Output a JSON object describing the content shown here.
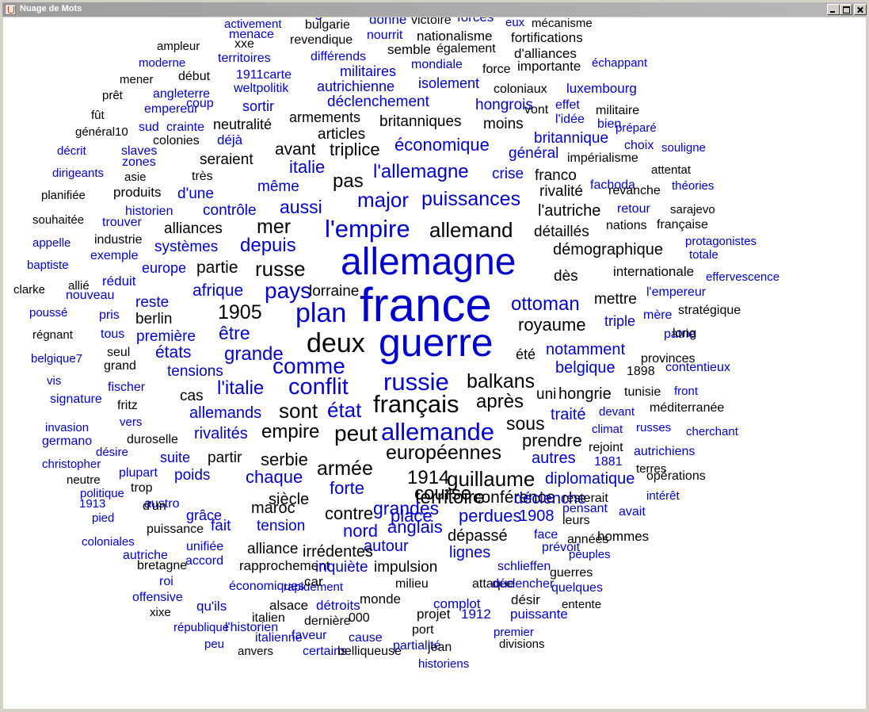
{
  "window": {
    "title": "Nuage de Mots"
  },
  "colors": {
    "black": "#000000",
    "blue": "#0000cc"
  },
  "words": [
    {
      "t": "l'angleterre",
      "c": "b"
    },
    {
      "t": "donné",
      "c": "b"
    },
    {
      "t": "victoire",
      "c": "k"
    },
    {
      "t": "forces",
      "c": "b"
    },
    {
      "t": "eux",
      "c": "b"
    },
    {
      "t": "mécanisme",
      "c": "k"
    },
    {
      "t": "activement",
      "c": "b"
    },
    {
      "t": "bulgarie",
      "c": "k"
    },
    {
      "t": "nourrit",
      "c": "b"
    },
    {
      "t": "nationalisme",
      "c": "k"
    },
    {
      "t": "fortifications",
      "c": "k"
    },
    {
      "t": "menace",
      "c": "b"
    },
    {
      "t": "xxe",
      "c": "k"
    },
    {
      "t": "revendique",
      "c": "k"
    },
    {
      "t": "semble",
      "c": "k"
    },
    {
      "t": "également",
      "c": "k"
    },
    {
      "t": "d'alliances",
      "c": "k"
    },
    {
      "t": "ampleur",
      "c": "k"
    },
    {
      "t": "territoires",
      "c": "b"
    },
    {
      "t": "différends",
      "c": "b"
    },
    {
      "t": "mondiale",
      "c": "b"
    },
    {
      "t": "force",
      "c": "k"
    },
    {
      "t": "importante",
      "c": "k"
    },
    {
      "t": "échappant",
      "c": "b"
    },
    {
      "t": "moderne",
      "c": "b"
    },
    {
      "t": "militaires",
      "c": "b"
    },
    {
      "t": "mener",
      "c": "k"
    },
    {
      "t": "début",
      "c": "k"
    },
    {
      "t": "1911carte",
      "c": "b"
    },
    {
      "t": "isolement",
      "c": "b"
    },
    {
      "t": "coloniaux",
      "c": "k"
    },
    {
      "t": "autrichienne",
      "c": "b"
    },
    {
      "t": "luxembourg",
      "c": "b"
    },
    {
      "t": "prêt",
      "c": "k"
    },
    {
      "t": "angleterre",
      "c": "b"
    },
    {
      "t": "weltpolitik",
      "c": "b"
    },
    {
      "t": "déclenchement",
      "c": "b"
    },
    {
      "t": "coup",
      "c": "b"
    },
    {
      "t": "empereur",
      "c": "b"
    },
    {
      "t": "sortir",
      "c": "b"
    },
    {
      "t": "hongrois",
      "c": "b"
    },
    {
      "t": "effet",
      "c": "b"
    },
    {
      "t": "vont",
      "c": "k"
    },
    {
      "t": "militaire",
      "c": "k"
    },
    {
      "t": "fût",
      "c": "k"
    },
    {
      "t": "armements",
      "c": "k"
    },
    {
      "t": "britanniques",
      "c": "k"
    },
    {
      "t": "moins",
      "c": "k"
    },
    {
      "t": "l'idée",
      "c": "b"
    },
    {
      "t": "bien",
      "c": "b"
    },
    {
      "t": "général10",
      "c": "k"
    },
    {
      "t": "sud",
      "c": "b"
    },
    {
      "t": "crainte",
      "c": "b"
    },
    {
      "t": "neutralité",
      "c": "k"
    },
    {
      "t": "préparé",
      "c": "b"
    },
    {
      "t": "articles",
      "c": "k"
    },
    {
      "t": "britannique",
      "c": "b"
    },
    {
      "t": "colonies",
      "c": "k"
    },
    {
      "t": "déjà",
      "c": "b"
    },
    {
      "t": "économique",
      "c": "b"
    },
    {
      "t": "choix",
      "c": "b"
    },
    {
      "t": "souligne",
      "c": "b"
    },
    {
      "t": "décrit",
      "c": "b"
    },
    {
      "t": "slaves",
      "c": "b"
    },
    {
      "t": "avant",
      "c": "k"
    },
    {
      "t": "triplice",
      "c": "k"
    },
    {
      "t": "général",
      "c": "b"
    },
    {
      "t": "impérialisme",
      "c": "k"
    },
    {
      "t": "zones",
      "c": "b"
    },
    {
      "t": "seraient",
      "c": "k"
    },
    {
      "t": "italie",
      "c": "b"
    },
    {
      "t": "l'allemagne",
      "c": "b"
    },
    {
      "t": "crise",
      "c": "b"
    },
    {
      "t": "attentat",
      "c": "k"
    },
    {
      "t": "dirigeants",
      "c": "b"
    },
    {
      "t": "asie",
      "c": "k"
    },
    {
      "t": "très",
      "c": "k"
    },
    {
      "t": "pas",
      "c": "k"
    },
    {
      "t": "franco",
      "c": "k"
    },
    {
      "t": "fachoda",
      "c": "b"
    },
    {
      "t": "théories",
      "c": "b"
    },
    {
      "t": "même",
      "c": "b"
    },
    {
      "t": "rivalité",
      "c": "k"
    },
    {
      "t": "revanche",
      "c": "k"
    },
    {
      "t": "planifiée",
      "c": "k"
    },
    {
      "t": "produits",
      "c": "k"
    },
    {
      "t": "d'une",
      "c": "b"
    },
    {
      "t": "major",
      "c": "b"
    },
    {
      "t": "puissances",
      "c": "b"
    },
    {
      "t": "aussi",
      "c": "b"
    },
    {
      "t": "retour",
      "c": "b"
    },
    {
      "t": "sarajevo",
      "c": "k"
    },
    {
      "t": "historien",
      "c": "b"
    },
    {
      "t": "contrôle",
      "c": "b"
    },
    {
      "t": "l'autriche",
      "c": "k"
    },
    {
      "t": "souhaitée",
      "c": "k"
    },
    {
      "t": "trouver",
      "c": "b"
    },
    {
      "t": "mer",
      "c": "k"
    },
    {
      "t": "l'empire",
      "c": "b"
    },
    {
      "t": "allemand",
      "c": "k"
    },
    {
      "t": "nations",
      "c": "k"
    },
    {
      "t": "française",
      "c": "k"
    },
    {
      "t": "alliances",
      "c": "k"
    },
    {
      "t": "détaillés",
      "c": "k"
    },
    {
      "t": "appelle",
      "c": "b"
    },
    {
      "t": "industrie",
      "c": "k"
    },
    {
      "t": "depuis",
      "c": "b"
    },
    {
      "t": "protagonistes",
      "c": "b"
    },
    {
      "t": "systèmes",
      "c": "b"
    },
    {
      "t": "totale",
      "c": "b"
    },
    {
      "t": "exemple",
      "c": "b"
    },
    {
      "t": "démographique",
      "c": "k"
    },
    {
      "t": "baptiste",
      "c": "b"
    },
    {
      "t": "europe",
      "c": "b"
    },
    {
      "t": "partie",
      "c": "k"
    },
    {
      "t": "russe",
      "c": "k"
    },
    {
      "t": "allemagne",
      "c": "b"
    },
    {
      "t": "internationale",
      "c": "k"
    },
    {
      "t": "effervescence",
      "c": "b"
    },
    {
      "t": "réduit",
      "c": "b"
    },
    {
      "t": "dès",
      "c": "k"
    },
    {
      "t": "allié",
      "c": "k"
    },
    {
      "t": "pays",
      "c": "b"
    },
    {
      "t": "lorraine",
      "c": "k"
    },
    {
      "t": "clarke",
      "c": "k"
    },
    {
      "t": "nouveau",
      "c": "b"
    },
    {
      "t": "afrique",
      "c": "b"
    },
    {
      "t": "l'empereur",
      "c": "b"
    },
    {
      "t": "mettre",
      "c": "k"
    },
    {
      "t": "reste",
      "c": "b"
    },
    {
      "t": "france",
      "c": "b"
    },
    {
      "t": "ottoman",
      "c": "b"
    },
    {
      "t": "poussé",
      "c": "b"
    },
    {
      "t": "pris",
      "c": "b"
    },
    {
      "t": "berlin",
      "c": "k"
    },
    {
      "t": "1905",
      "c": "k"
    },
    {
      "t": "plan",
      "c": "b"
    },
    {
      "t": "stratégique",
      "c": "k"
    },
    {
      "t": "mère",
      "c": "b"
    },
    {
      "t": "régnant",
      "c": "k"
    },
    {
      "t": "tous",
      "c": "b"
    },
    {
      "t": "première",
      "c": "b"
    },
    {
      "t": "être",
      "c": "b"
    },
    {
      "t": "royaume",
      "c": "k"
    },
    {
      "t": "triple",
      "c": "b"
    },
    {
      "t": "patrie",
      "c": "b"
    },
    {
      "t": "long",
      "c": "k"
    },
    {
      "t": "deux",
      "c": "k"
    },
    {
      "t": "guerre",
      "c": "b"
    },
    {
      "t": "seul",
      "c": "k"
    },
    {
      "t": "belgique7",
      "c": "b"
    },
    {
      "t": "états",
      "c": "b"
    },
    {
      "t": "grande",
      "c": "b"
    },
    {
      "t": "notamment",
      "c": "b"
    },
    {
      "t": "été",
      "c": "k"
    },
    {
      "t": "provinces",
      "c": "k"
    },
    {
      "t": "grand",
      "c": "k"
    },
    {
      "t": "comme",
      "c": "b"
    },
    {
      "t": "tensions",
      "c": "b"
    },
    {
      "t": "belgique",
      "c": "b"
    },
    {
      "t": "1898",
      "c": "k"
    },
    {
      "t": "contentieux",
      "c": "b"
    },
    {
      "t": "vis",
      "c": "b"
    },
    {
      "t": "russie",
      "c": "b"
    },
    {
      "t": "balkans",
      "c": "k"
    },
    {
      "t": "fischer",
      "c": "b"
    },
    {
      "t": "l'italie",
      "c": "b"
    },
    {
      "t": "conflit",
      "c": "b"
    },
    {
      "t": "hongrie",
      "c": "k"
    },
    {
      "t": "uni",
      "c": "k"
    },
    {
      "t": "tunisie",
      "c": "k"
    },
    {
      "t": "front",
      "c": "b"
    },
    {
      "t": "signature",
      "c": "b"
    },
    {
      "t": "cas",
      "c": "k"
    },
    {
      "t": "français",
      "c": "k"
    },
    {
      "t": "fritz",
      "c": "k"
    },
    {
      "t": "après",
      "c": "k"
    },
    {
      "t": "sont",
      "c": "k"
    },
    {
      "t": "état",
      "c": "b"
    },
    {
      "t": "méditerranée",
      "c": "k"
    },
    {
      "t": "allemands",
      "c": "b"
    },
    {
      "t": "traité",
      "c": "b"
    },
    {
      "t": "devant",
      "c": "b"
    },
    {
      "t": "vers",
      "c": "b"
    },
    {
      "t": "invasion",
      "c": "b"
    },
    {
      "t": "sous",
      "c": "k"
    },
    {
      "t": "climat",
      "c": "b"
    },
    {
      "t": "russes",
      "c": "b"
    },
    {
      "t": "cherchant",
      "c": "b"
    },
    {
      "t": "rivalités",
      "c": "b"
    },
    {
      "t": "empire",
      "c": "k"
    },
    {
      "t": "peut",
      "c": "k"
    },
    {
      "t": "allemande",
      "c": "b"
    },
    {
      "t": "duroselle",
      "c": "k"
    },
    {
      "t": "germano",
      "c": "b"
    },
    {
      "t": "prendre",
      "c": "k"
    },
    {
      "t": "rejoint",
      "c": "k"
    },
    {
      "t": "autrichiens",
      "c": "b"
    },
    {
      "t": "désire",
      "c": "b"
    },
    {
      "t": "européennes",
      "c": "k"
    },
    {
      "t": "christopher",
      "c": "b"
    },
    {
      "t": "suite",
      "c": "b"
    },
    {
      "t": "partir",
      "c": "k"
    },
    {
      "t": "serbie",
      "c": "k"
    },
    {
      "t": "armée",
      "c": "k"
    },
    {
      "t": "autres",
      "c": "b"
    },
    {
      "t": "1881",
      "c": "b"
    },
    {
      "t": "terres",
      "c": "k"
    },
    {
      "t": "plupart",
      "c": "b"
    },
    {
      "t": "poids",
      "c": "b"
    },
    {
      "t": "chaque",
      "c": "b"
    },
    {
      "t": "guillaume",
      "c": "k"
    },
    {
      "t": "1914",
      "c": "k"
    },
    {
      "t": "neutre",
      "c": "k"
    },
    {
      "t": "diplomatique",
      "c": "b"
    },
    {
      "t": "opérations",
      "c": "k"
    },
    {
      "t": "trop",
      "c": "k"
    },
    {
      "t": "politique",
      "c": "b"
    },
    {
      "t": "austro",
      "c": "b"
    },
    {
      "t": "course",
      "c": "k"
    },
    {
      "t": "forte",
      "c": "b"
    },
    {
      "t": "siècle",
      "c": "k"
    },
    {
      "t": "conférence",
      "c": "k"
    },
    {
      "t": "déclenche",
      "c": "b"
    },
    {
      "t": "resterait",
      "c": "k"
    },
    {
      "t": "intérêt",
      "c": "b"
    },
    {
      "t": "1913",
      "c": "b"
    },
    {
      "t": "d'un",
      "c": "k"
    },
    {
      "t": "territoire",
      "c": "k"
    },
    {
      "t": "grandes",
      "c": "b"
    },
    {
      "t": "maroc",
      "c": "k"
    },
    {
      "t": "grâce",
      "c": "b"
    },
    {
      "t": "pensant",
      "c": "b"
    },
    {
      "t": "avait",
      "c": "b"
    },
    {
      "t": "pied",
      "c": "b"
    },
    {
      "t": "contre",
      "c": "k"
    },
    {
      "t": "place",
      "c": "b"
    },
    {
      "t": "perdues",
      "c": "b"
    },
    {
      "t": "1908",
      "c": "b"
    },
    {
      "t": "leurs",
      "c": "k"
    },
    {
      "t": "puissance",
      "c": "k"
    },
    {
      "t": "fait",
      "c": "b"
    },
    {
      "t": "tension",
      "c": "b"
    },
    {
      "t": "anglais",
      "c": "b"
    },
    {
      "t": "face",
      "c": "b"
    },
    {
      "t": "hommes",
      "c": "k"
    },
    {
      "t": "nord",
      "c": "b"
    },
    {
      "t": "dépassé",
      "c": "k"
    },
    {
      "t": "années",
      "c": "k"
    },
    {
      "t": "coloniales",
      "c": "b"
    },
    {
      "t": "unifiée",
      "c": "b"
    },
    {
      "t": "autour",
      "c": "b"
    },
    {
      "t": "prévoit",
      "c": "b"
    },
    {
      "t": "autriche",
      "c": "b"
    },
    {
      "t": "alliance",
      "c": "k"
    },
    {
      "t": "irrédentes",
      "c": "k"
    },
    {
      "t": "lignes",
      "c": "b"
    },
    {
      "t": "peuples",
      "c": "b"
    },
    {
      "t": "bretagne",
      "c": "k"
    },
    {
      "t": "accord",
      "c": "b"
    },
    {
      "t": "rapprochement",
      "c": "k"
    },
    {
      "t": "inquiète",
      "c": "b"
    },
    {
      "t": "impulsion",
      "c": "k"
    },
    {
      "t": "schlieffen",
      "c": "b"
    },
    {
      "t": "guerres",
      "c": "k"
    },
    {
      "t": "roi",
      "c": "b"
    },
    {
      "t": "économiques",
      "c": "b"
    },
    {
      "t": "rapidement",
      "c": "b"
    },
    {
      "t": "car",
      "c": "k"
    },
    {
      "t": "milieu",
      "c": "k"
    },
    {
      "t": "attaque",
      "c": "k"
    },
    {
      "t": "déclencher",
      "c": "b"
    },
    {
      "t": "quelques",
      "c": "b"
    },
    {
      "t": "offensive",
      "c": "b"
    },
    {
      "t": "monde",
      "c": "k"
    },
    {
      "t": "qu'ils",
      "c": "b"
    },
    {
      "t": "alsace",
      "c": "k"
    },
    {
      "t": "détroits",
      "c": "b"
    },
    {
      "t": "complot",
      "c": "b"
    },
    {
      "t": "désir",
      "c": "k"
    },
    {
      "t": "entente",
      "c": "k"
    },
    {
      "t": "xixe",
      "c": "k"
    },
    {
      "t": "italien",
      "c": "k"
    },
    {
      "t": "projet",
      "c": "k"
    },
    {
      "t": "1912",
      "c": "b"
    },
    {
      "t": "puissante",
      "c": "b"
    },
    {
      "t": "dernière",
      "c": "k"
    },
    {
      "t": "000",
      "c": "k"
    },
    {
      "t": "république",
      "c": "b"
    },
    {
      "t": "l'historien",
      "c": "b"
    },
    {
      "t": "port",
      "c": "k"
    },
    {
      "t": "premier",
      "c": "b"
    },
    {
      "t": "italienne",
      "c": "b"
    },
    {
      "t": "faveur",
      "c": "b"
    },
    {
      "t": "cause",
      "c": "b"
    },
    {
      "t": "peu",
      "c": "b"
    },
    {
      "t": "divisions",
      "c": "k"
    },
    {
      "t": "partialité",
      "c": "b"
    },
    {
      "t": "jean",
      "c": "k"
    },
    {
      "t": "anvers",
      "c": "k"
    },
    {
      "t": "certains",
      "c": "b"
    },
    {
      "t": "belliqueuse",
      "c": "k"
    },
    {
      "t": "historiens",
      "c": "b"
    }
  ]
}
